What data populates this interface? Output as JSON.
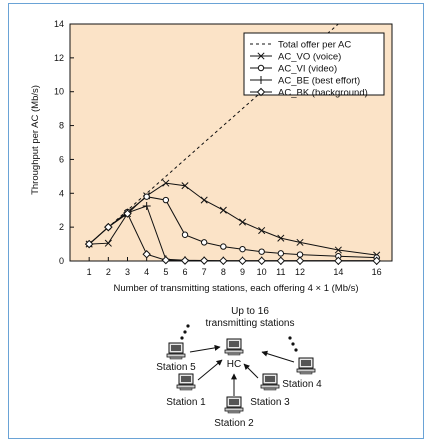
{
  "chart_data": {
    "type": "line",
    "xlabel": "Number of transmitting stations, each offering 4 × 1 (Mb/s)",
    "ylabel": "Throughput per AC (Mb/s)",
    "xlim": [
      0,
      16.8
    ],
    "ylim": [
      0,
      14
    ],
    "xticks": [
      1,
      2,
      3,
      4,
      5,
      6,
      7,
      8,
      9,
      10,
      11,
      12,
      14,
      16
    ],
    "yticks": [
      0,
      2,
      4,
      6,
      8,
      10,
      12,
      14
    ],
    "legend_position": "top-right",
    "series": [
      {
        "name": "Total offer per AC",
        "marker": "none",
        "dashed": true,
        "x": [
          1,
          14
        ],
        "y": [
          1,
          14
        ]
      },
      {
        "name": "AC_VO (voice)",
        "marker": "x",
        "x": [
          1,
          2,
          3,
          4,
          5,
          6,
          7,
          8,
          9,
          10,
          11,
          12,
          14,
          16
        ],
        "y": [
          1.0,
          1.05,
          2.8,
          3.85,
          4.6,
          4.45,
          3.6,
          3.0,
          2.3,
          1.8,
          1.35,
          1.1,
          0.65,
          0.35
        ]
      },
      {
        "name": "AC_VI (video)",
        "marker": "o",
        "x": [
          1,
          2,
          3,
          4,
          5,
          6,
          7,
          8,
          9,
          10,
          11,
          12,
          14,
          16
        ],
        "y": [
          1.0,
          2.0,
          2.9,
          3.8,
          3.6,
          1.55,
          1.1,
          0.85,
          0.7,
          0.55,
          0.45,
          0.38,
          0.28,
          0.2
        ]
      },
      {
        "name": "AC_BE (best effort)",
        "marker": "+",
        "x": [
          1,
          2,
          3,
          4,
          5,
          6,
          7,
          8,
          9,
          10,
          11,
          12,
          14,
          16
        ],
        "y": [
          1.0,
          2.0,
          2.85,
          3.25,
          0.1,
          0.05,
          0.03,
          0.02,
          0.02,
          0.02,
          0.01,
          0.01,
          0.01,
          0.01
        ]
      },
      {
        "name": "AC_BK (background)",
        "marker": "diamond",
        "x": [
          1,
          2,
          3,
          4,
          5,
          6,
          7,
          8,
          9,
          10,
          11,
          12,
          14,
          16
        ],
        "y": [
          1.0,
          2.0,
          2.8,
          0.4,
          0.05,
          0.02,
          0.02,
          0.01,
          0.01,
          0.01,
          0.01,
          0.01,
          0.01,
          0.01
        ]
      }
    ]
  },
  "diagram": {
    "title_line1": "Up to 16",
    "title_line2": "transmitting stations",
    "hc_label": "HC",
    "stations": [
      "Station 5",
      "Station 1",
      "Station 2",
      "Station 3",
      "Station 4"
    ]
  },
  "colors": {
    "plot_bg": "#fbe3c7",
    "frame": "#6aa3d6",
    "line": "#111111"
  }
}
